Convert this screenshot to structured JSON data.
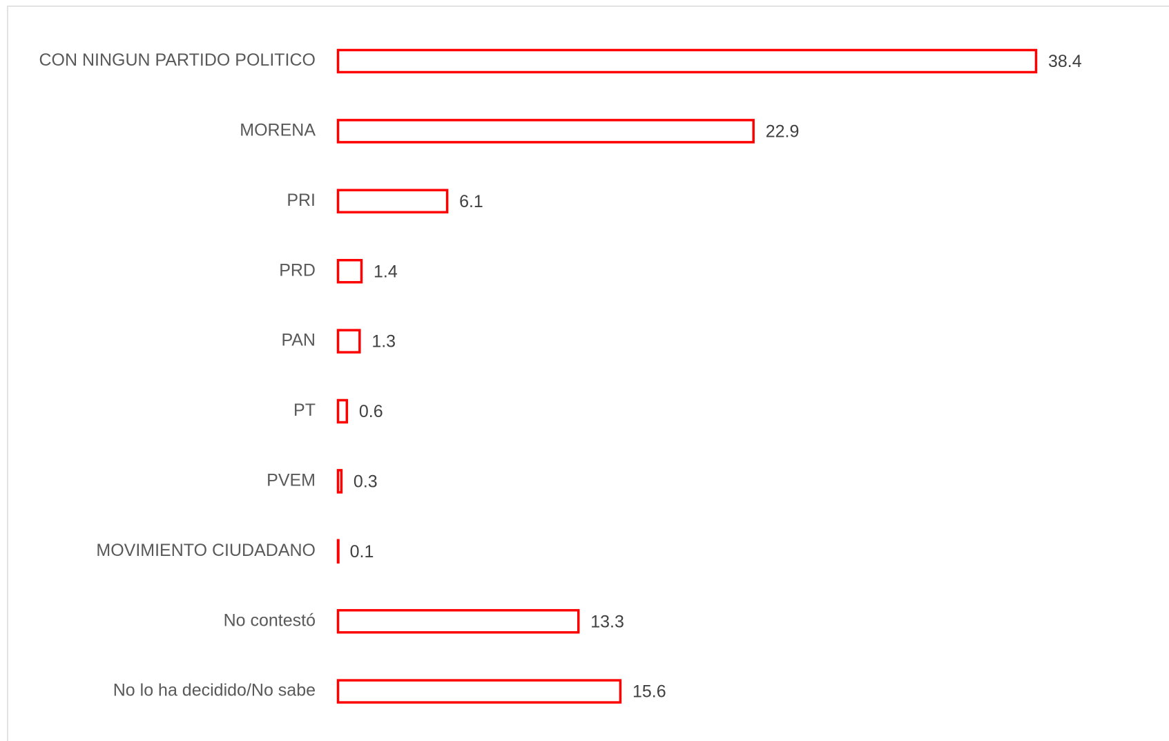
{
  "chart_data": {
    "type": "bar",
    "orientation": "horizontal",
    "categories": [
      "CON NINGUN PARTIDO POLITICO",
      "MORENA",
      "PRI",
      "PRD",
      "PAN",
      "PT",
      "PVEM",
      "MOVIMIENTO CIUDADANO",
      "No contestó",
      "No lo ha decidido/No sabe"
    ],
    "values": [
      38.4,
      22.9,
      6.1,
      1.4,
      1.3,
      0.6,
      0.3,
      0.1,
      13.3,
      15.6
    ],
    "color": "#ff0000",
    "grid": false
  }
}
